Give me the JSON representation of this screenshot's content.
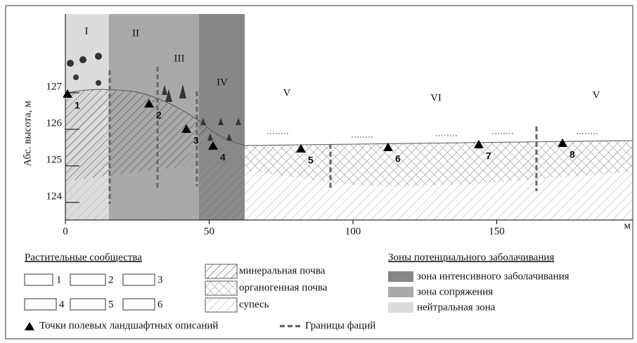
{
  "axis": {
    "y_label": "Абс. высота, м",
    "x_unit": "м",
    "xticks": [
      0,
      50,
      100,
      150
    ],
    "yticks": [
      124,
      125,
      126,
      127
    ]
  },
  "zones": [
    "I",
    "II",
    "III",
    "IV",
    "V",
    "VI",
    "V"
  ],
  "points": [
    "1",
    "2",
    "3",
    "4",
    "5",
    "6",
    "7",
    "8"
  ],
  "legend": {
    "communities": {
      "title": "Растительные сообщества",
      "items": [
        "1",
        "2",
        "3",
        "4",
        "5",
        "6"
      ]
    },
    "soils": [
      "минеральная почва",
      "органогенная почва",
      "супесь"
    ],
    "wetland": {
      "title": "Зоны потенциального заболачивания",
      "items": [
        "зона интенсивного заболачивания",
        "зона сопряжения",
        "нейтральная зона"
      ]
    },
    "points_note": "Точки полевых ландшафтных описаний",
    "boundaries": "Границы фаций"
  }
}
